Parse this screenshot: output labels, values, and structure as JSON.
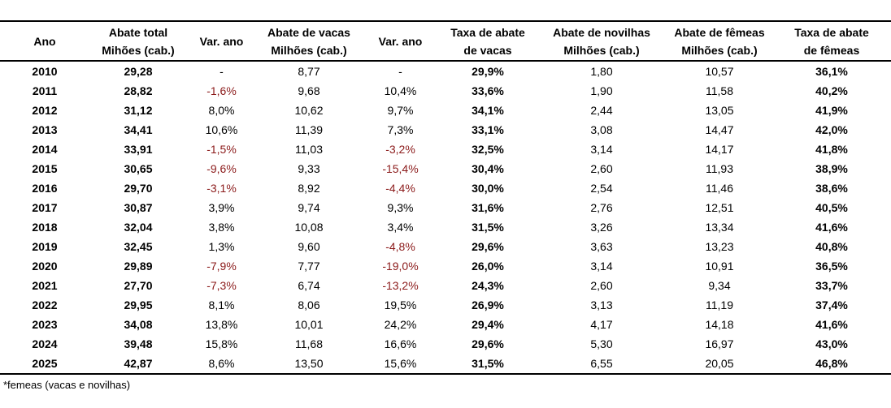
{
  "headers": [
    [
      "Ano"
    ],
    [
      "Abate total",
      "Mihões (cab.)"
    ],
    [
      "Var. ano"
    ],
    [
      "Abate de vacas",
      "Milhões (cab.)"
    ],
    [
      "Var. ano"
    ],
    [
      "Taxa de abate",
      "de vacas"
    ],
    [
      "Abate de novilhas",
      "Milhões (cab.)"
    ],
    [
      "Abate de fêmeas",
      "Milhões (cab.)"
    ],
    [
      "Taxa de abate",
      "de fêmeas"
    ]
  ],
  "rows": [
    [
      "2010",
      "29,28",
      "-",
      "8,77",
      "-",
      "29,9%",
      "1,80",
      "10,57",
      "36,1%"
    ],
    [
      "2011",
      "28,82",
      "-1,6%",
      "9,68",
      "10,4%",
      "33,6%",
      "1,90",
      "11,58",
      "40,2%"
    ],
    [
      "2012",
      "31,12",
      "8,0%",
      "10,62",
      "9,7%",
      "34,1%",
      "2,44",
      "13,05",
      "41,9%"
    ],
    [
      "2013",
      "34,41",
      "10,6%",
      "11,39",
      "7,3%",
      "33,1%",
      "3,08",
      "14,47",
      "42,0%"
    ],
    [
      "2014",
      "33,91",
      "-1,5%",
      "11,03",
      "-3,2%",
      "32,5%",
      "3,14",
      "14,17",
      "41,8%"
    ],
    [
      "2015",
      "30,65",
      "-9,6%",
      "9,33",
      "-15,4%",
      "30,4%",
      "2,60",
      "11,93",
      "38,9%"
    ],
    [
      "2016",
      "29,70",
      "-3,1%",
      "8,92",
      "-4,4%",
      "30,0%",
      "2,54",
      "11,46",
      "38,6%"
    ],
    [
      "2017",
      "30,87",
      "3,9%",
      "9,74",
      "9,3%",
      "31,6%",
      "2,76",
      "12,51",
      "40,5%"
    ],
    [
      "2018",
      "32,04",
      "3,8%",
      "10,08",
      "3,4%",
      "31,5%",
      "3,26",
      "13,34",
      "41,6%"
    ],
    [
      "2019",
      "32,45",
      "1,3%",
      "9,60",
      "-4,8%",
      "29,6%",
      "3,63",
      "13,23",
      "40,8%"
    ],
    [
      "2020",
      "29,89",
      "-7,9%",
      "7,77",
      "-19,0%",
      "26,0%",
      "3,14",
      "10,91",
      "36,5%"
    ],
    [
      "2021",
      "27,70",
      "-7,3%",
      "6,74",
      "-13,2%",
      "24,3%",
      "2,60",
      "9,34",
      "33,7%"
    ],
    [
      "2022",
      "29,95",
      "8,1%",
      "8,06",
      "19,5%",
      "26,9%",
      "3,13",
      "11,19",
      "37,4%"
    ],
    [
      "2023",
      "34,08",
      "13,8%",
      "10,01",
      "24,2%",
      "29,4%",
      "4,17",
      "14,18",
      "41,6%"
    ],
    [
      "2024",
      "39,48",
      "15,8%",
      "11,68",
      "16,6%",
      "29,6%",
      "5,30",
      "16,97",
      "43,0%"
    ],
    [
      "2025",
      "42,87",
      "8,6%",
      "13,50",
      "15,6%",
      "31,5%",
      "6,55",
      "20,05",
      "46,8%"
    ]
  ],
  "footnote": "*femeas (vacas e novilhas)",
  "colors": {
    "negative": "#8b1a1a",
    "text": "#000000"
  }
}
